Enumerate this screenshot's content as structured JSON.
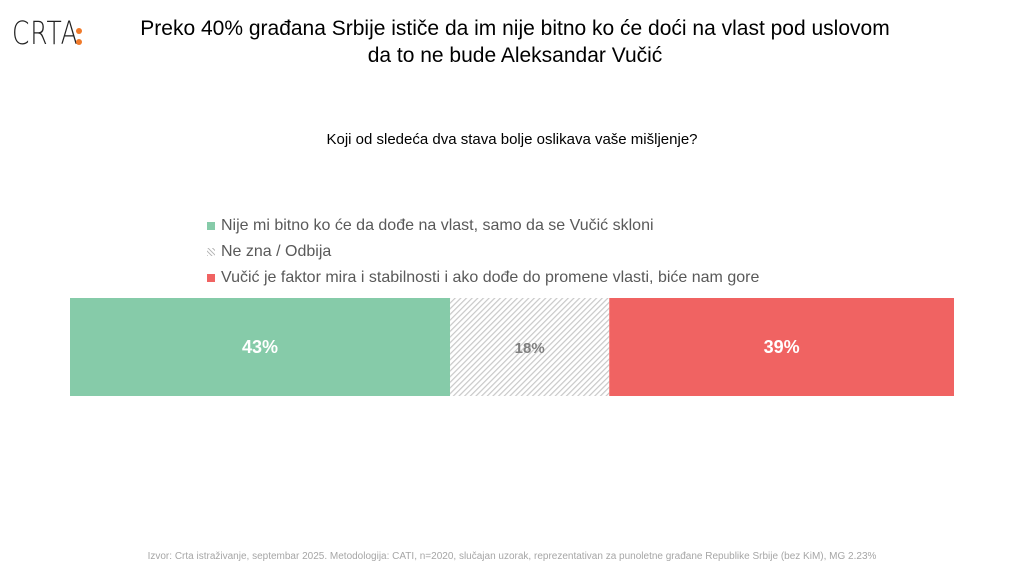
{
  "logo": "CRTA",
  "title_line1": "Preko 40% građana Srbije ističe da im nije bitno ko će doći na vlast pod uslovom",
  "title_line2": "da to ne bude Aleksandar Vučić",
  "chart_data": {
    "type": "bar",
    "orientation": "horizontal-stacked-100",
    "title": "Preko 40% građana Srbije ističe da im nije bitno ko će doći na vlast pod uslovom da to ne bude Aleksandar Vučić",
    "subtitle": "Koji od sledeća dva stava bolje oslikava vaše mišljenje?",
    "legend_position": "top",
    "series": [
      {
        "name": "Nije mi bitno ko će da dođe na vlast, samo da se Vučić skloni",
        "value": 43,
        "label": "43%",
        "color": "#86cba9",
        "label_color": "#ffffff"
      },
      {
        "name": "Ne zna / Odbija",
        "value": 18,
        "label": "18%",
        "color": "hatch",
        "label_color": "#7f7f7f"
      },
      {
        "name": "Vučić je faktor mira i stabilnosti i ako dođe do promene vlasti, biće nam gore",
        "value": 39,
        "label": "39%",
        "color": "#f06362",
        "label_color": "#ffffff"
      }
    ]
  },
  "footnote": "Izvor: Crta istraživanje, septembar 2025. Metodologija: CATI, n=2020, slučajan uzorak, reprezentativan za punoletne građane Republike Srbije (bez KiM), MG 2.23%"
}
